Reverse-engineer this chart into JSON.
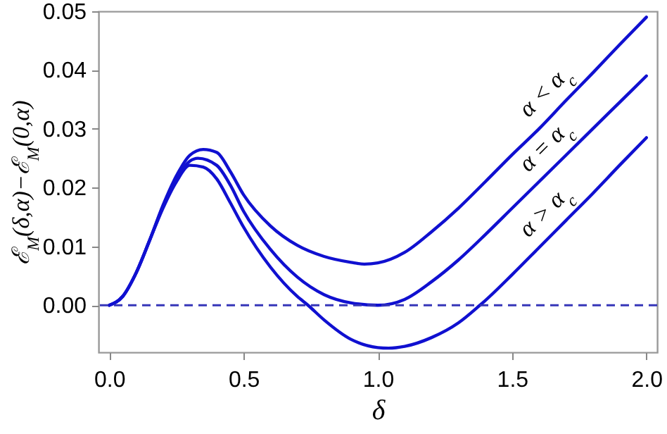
{
  "chart_data": {
    "type": "line",
    "xlabel": "δ",
    "ylabel": "ℰ$_{M}$(δ,α)−ℰ$_{M}$(0,α)",
    "xlim": [
      -0.04,
      2.04
    ],
    "ylim": [
      -0.008,
      0.05
    ],
    "xticks": [
      {
        "value": 0,
        "label": "0.0"
      },
      {
        "value": 0.5,
        "label": "0.5"
      },
      {
        "value": 1,
        "label": "1.0"
      },
      {
        "value": 1.5,
        "label": "1.5"
      },
      {
        "value": 2,
        "label": "2.0"
      }
    ],
    "yticks": [
      {
        "value": 0,
        "label": "0.00"
      },
      {
        "value": 0.01,
        "label": "0.01"
      },
      {
        "value": 0.02,
        "label": "0.02"
      },
      {
        "value": 0.03,
        "label": "0.03"
      },
      {
        "value": 0.04,
        "label": "0.04"
      },
      {
        "value": 0.05,
        "label": "0.05"
      }
    ],
    "grid": false,
    "marker": "none",
    "line_style": "solid",
    "ref_lines": [
      {
        "axis": "y",
        "value": 0,
        "color": "#3636b8",
        "line_style": "dashed"
      }
    ],
    "series": [
      {
        "name": "α < α$_{c}$",
        "color": "#1010d0",
        "x": [
          0,
          0.05,
          0.1,
          0.15,
          0.2,
          0.25,
          0.3,
          0.35,
          0.4,
          0.45,
          0.5,
          0.6,
          0.7,
          0.8,
          0.9,
          0.95,
          1.0,
          1.1,
          1.2,
          1.3,
          1.4,
          1.5,
          1.6,
          1.7,
          1.8,
          1.9,
          2.0
        ],
        "values": [
          0,
          0.0015,
          0.0055,
          0.011,
          0.017,
          0.022,
          0.0255,
          0.0265,
          0.026,
          0.0228,
          0.0188,
          0.0135,
          0.0102,
          0.0083,
          0.0073,
          0.007,
          0.0072,
          0.009,
          0.0125,
          0.0165,
          0.021,
          0.0256,
          0.03,
          0.0348,
          0.0395,
          0.0443,
          0.049
        ]
      },
      {
        "name": "α = α$_{c}$",
        "color": "#1010d0",
        "x": [
          0,
          0.05,
          0.1,
          0.15,
          0.2,
          0.25,
          0.3,
          0.33,
          0.4,
          0.45,
          0.5,
          0.6,
          0.7,
          0.8,
          0.9,
          1.0,
          1.1,
          1.2,
          1.3,
          1.4,
          1.5,
          1.6,
          1.7,
          1.8,
          1.9,
          2.0
        ],
        "values": [
          0,
          0.0015,
          0.0055,
          0.011,
          0.0168,
          0.0215,
          0.0245,
          0.025,
          0.0238,
          0.0205,
          0.016,
          0.0095,
          0.0048,
          0.0018,
          0.0004,
          0,
          0.001,
          0.004,
          0.0077,
          0.012,
          0.0165,
          0.021,
          0.0255,
          0.03,
          0.0345,
          0.039
        ]
      },
      {
        "name": "α > α$_{c}$",
        "color": "#1010d0",
        "x": [
          0,
          0.05,
          0.1,
          0.15,
          0.2,
          0.25,
          0.3,
          0.35,
          0.4,
          0.45,
          0.5,
          0.6,
          0.7,
          0.74,
          0.8,
          0.9,
          1.0,
          1.04,
          1.1,
          1.2,
          1.3,
          1.38,
          1.4,
          1.5,
          1.6,
          1.7,
          1.8,
          1.9,
          2.0
        ],
        "values": [
          0,
          0.0015,
          0.0055,
          0.011,
          0.0165,
          0.021,
          0.0238,
          0.0235,
          0.0215,
          0.0175,
          0.0133,
          0.0065,
          0.0015,
          0,
          -0.0025,
          -0.0058,
          -0.0072,
          -0.0073,
          -0.007,
          -0.0055,
          -0.003,
          0,
          0.0008,
          0.0052,
          0.0098,
          0.0144,
          0.019,
          0.0238,
          0.0285
        ]
      }
    ]
  }
}
